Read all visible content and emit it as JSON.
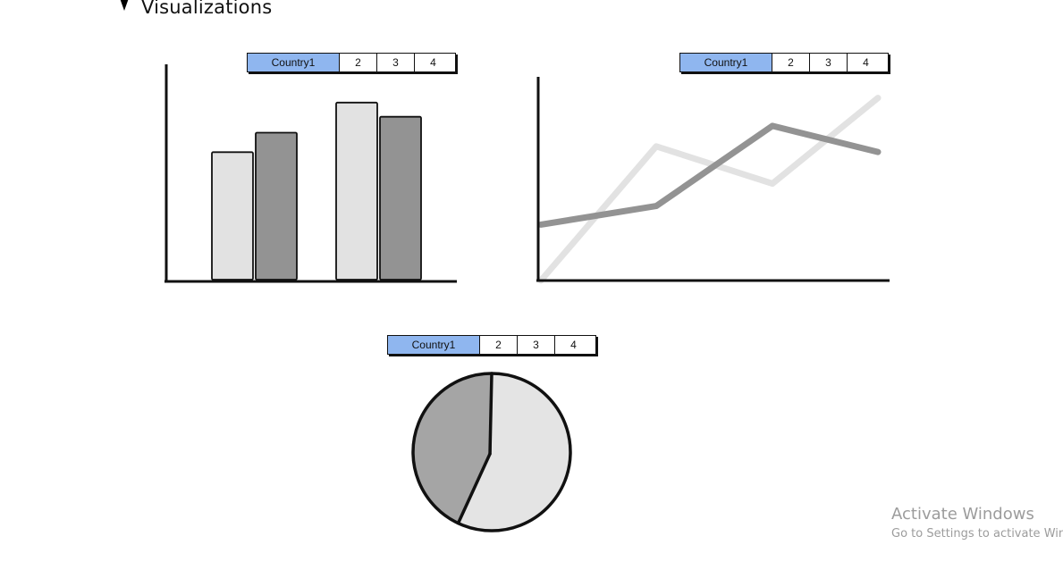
{
  "section": {
    "title": "Visualizations",
    "toggle_icon": "triangle-down-icon"
  },
  "bar_panel": {
    "tabs": [
      {
        "label": "Country1",
        "active": true
      },
      {
        "label": "2",
        "active": false
      },
      {
        "label": "3",
        "active": false
      },
      {
        "label": "4",
        "active": false
      }
    ]
  },
  "line_panel": {
    "tabs": [
      {
        "label": "Country1",
        "active": true
      },
      {
        "label": "2",
        "active": false
      },
      {
        "label": "3",
        "active": false
      },
      {
        "label": "4",
        "active": false
      }
    ]
  },
  "pie_panel": {
    "tabs": [
      {
        "label": "Country1",
        "active": true
      },
      {
        "label": "2",
        "active": false
      },
      {
        "label": "3",
        "active": false
      },
      {
        "label": "4",
        "active": false
      }
    ]
  },
  "colors": {
    "active_tab": "#8fb6ef",
    "light_series": "#e2e2e2",
    "dark_series": "#939393",
    "pie_light": "#e4e4e4",
    "pie_dark": "#a5a5a5",
    "axis": "#111111"
  },
  "chart_data": [
    {
      "type": "bar",
      "categories": [
        "",
        ""
      ],
      "series": [
        {
          "values": [
            72,
            100
          ]
        },
        {
          "values": [
            83,
            92
          ]
        }
      ],
      "ylim": [
        0,
        110
      ],
      "grid": false
    },
    {
      "type": "line",
      "x": [
        1,
        2,
        3,
        4
      ],
      "series": [
        {
          "values": [
            0,
            72,
            52,
            98
          ]
        },
        {
          "values": [
            30,
            40,
            83,
            69
          ]
        }
      ],
      "ylim": [
        0,
        105
      ],
      "grid": false
    },
    {
      "type": "pie",
      "values": [
        57,
        43
      ],
      "grid": false
    }
  ],
  "watermark": {
    "title": "Activate Windows",
    "subtitle": "Go to Settings to activate Windows."
  }
}
